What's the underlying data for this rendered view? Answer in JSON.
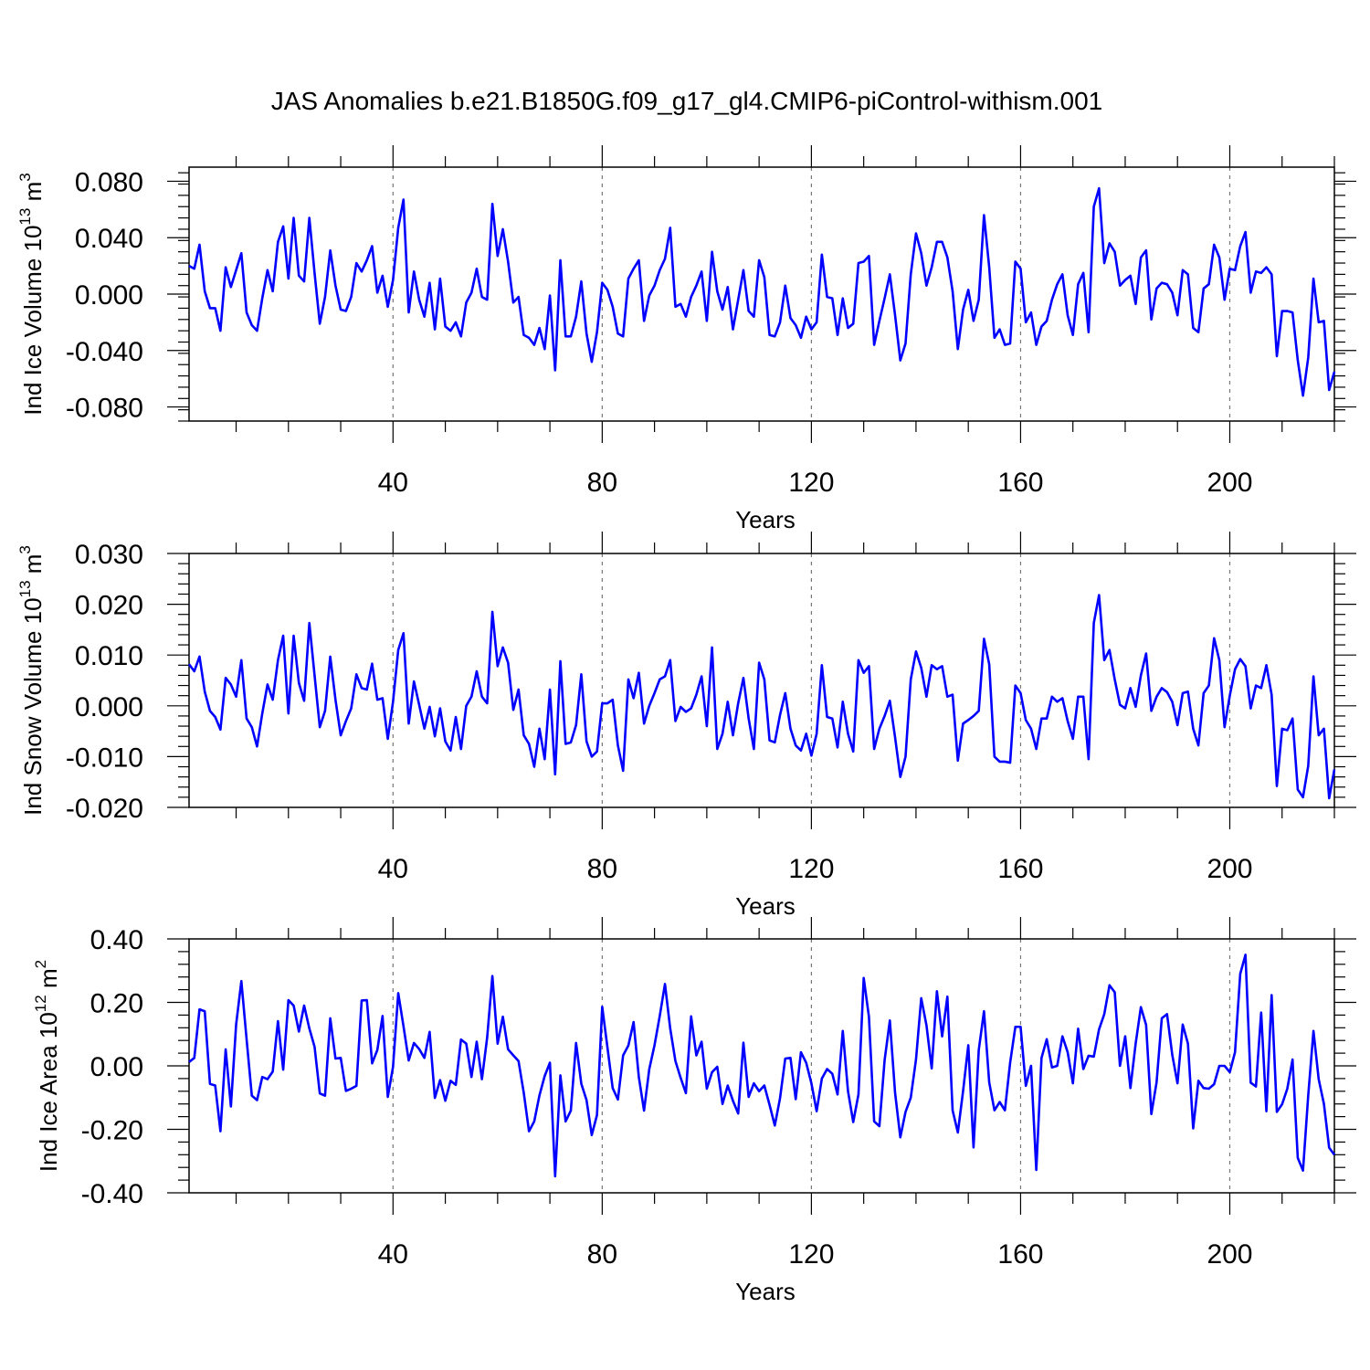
{
  "figure": {
    "title": "JAS Anomalies b.e21.B1850G.f09_g17_gl4.CMIP6-piControl-withism.001"
  },
  "chart_data": [
    {
      "type": "line",
      "xlabel": "Years",
      "ylabel_main": "Ind Ice Volume 10",
      "ylabel_exp": "13",
      "ylabel_unit": " m",
      "ylabel_unit_exp": "3",
      "xlim": [
        1,
        220
      ],
      "ylim": [
        -0.09,
        0.09
      ],
      "xticks": [
        40,
        80,
        120,
        160,
        200
      ],
      "xtick_labels": [
        "40",
        "80",
        "120",
        "160",
        "200"
      ],
      "yticks": [
        -0.08,
        -0.04,
        0.0,
        0.04,
        0.08
      ],
      "ytick_labels": [
        "-0.080",
        "-0.040",
        "0.000",
        "0.040",
        "0.080"
      ],
      "grid": "dashed vertical at x ticks",
      "color": "#0000ff",
      "series": [
        {
          "x_start": 1,
          "values": [
            0.02,
            0.018,
            0.035,
            0.002,
            -0.01,
            -0.01,
            -0.026,
            0.019,
            0.005,
            0.017,
            0.029,
            -0.013,
            -0.022,
            -0.026,
            -0.003,
            0.017,
            0.002,
            0.037,
            0.048,
            0.011,
            0.054,
            0.013,
            0.009,
            0.054,
            0.015,
            -0.021,
            -0.002,
            0.031,
            0.006,
            -0.011,
            -0.012,
            -0.002,
            0.022,
            0.016,
            0.024,
            0.034,
            0.001,
            0.013,
            -0.009,
            0.01,
            0.047,
            0.067,
            -0.013,
            0.016,
            -0.004,
            -0.016,
            0.008,
            -0.025,
            0.011,
            -0.023,
            -0.026,
            -0.02,
            -0.03,
            -0.006,
            0.001,
            0.018,
            -0.002,
            -0.004,
            0.064,
            0.027,
            0.046,
            0.023,
            -0.006,
            -0.002,
            -0.029,
            -0.031,
            -0.036,
            -0.024,
            -0.039,
            -0.001,
            -0.054,
            0.024,
            -0.03,
            -0.03,
            -0.016,
            0.009,
            -0.028,
            -0.048,
            -0.027,
            0.008,
            0.003,
            -0.009,
            -0.028,
            -0.03,
            0.011,
            0.018,
            0.024,
            -0.019,
            -0.001,
            0.006,
            0.017,
            0.025,
            0.047,
            -0.009,
            -0.007,
            -0.016,
            -0.002,
            0.006,
            0.016,
            -0.019,
            0.03,
            0.002,
            -0.011,
            0.005,
            -0.025,
            -0.004,
            0.017,
            -0.012,
            -0.016,
            0.024,
            0.012,
            -0.029,
            -0.03,
            -0.02,
            0.006,
            -0.017,
            -0.022,
            -0.031,
            -0.016,
            -0.025,
            -0.02,
            0.028,
            -0.002,
            -0.003,
            -0.029,
            -0.003,
            -0.024,
            -0.021,
            0.022,
            0.023,
            0.027,
            -0.036,
            -0.019,
            -0.003,
            0.014,
            -0.015,
            -0.047,
            -0.035,
            0.014,
            0.043,
            0.029,
            0.006,
            0.019,
            0.037,
            0.037,
            0.026,
            0.002,
            -0.039,
            -0.011,
            0.003,
            -0.019,
            -0.004,
            0.056,
            0.019,
            -0.031,
            -0.025,
            -0.036,
            -0.035,
            0.023,
            0.018,
            -0.02,
            -0.013,
            -0.036,
            -0.023,
            -0.019,
            -0.004,
            0.007,
            0.014,
            -0.015,
            -0.029,
            0.007,
            0.015,
            -0.027,
            0.062,
            0.075,
            0.022,
            0.036,
            0.03,
            0.006,
            0.01,
            0.013,
            -0.007,
            0.026,
            0.031,
            -0.018,
            0.004,
            0.008,
            0.007,
            0.001,
            -0.015,
            0.017,
            0.014,
            -0.024,
            -0.027,
            0.004,
            0.007,
            0.035,
            0.026,
            -0.004,
            0.018,
            0.017,
            0.034,
            0.044,
            0.001,
            0.016,
            0.015,
            0.019,
            0.014,
            -0.044,
            -0.012,
            -0.012,
            -0.013,
            -0.047,
            -0.072,
            -0.045,
            0.011,
            -0.02,
            -0.019,
            -0.068,
            -0.055
          ]
        }
      ]
    },
    {
      "type": "line",
      "xlabel": "Years",
      "ylabel_main": "Ind Snow Volume 10",
      "ylabel_exp": "13",
      "ylabel_unit": " m",
      "ylabel_unit_exp": "3",
      "xlim": [
        1,
        220
      ],
      "ylim": [
        -0.02,
        0.03
      ],
      "xticks": [
        40,
        80,
        120,
        160,
        200
      ],
      "xtick_labels": [
        "40",
        "80",
        "120",
        "160",
        "200"
      ],
      "yticks": [
        -0.02,
        -0.01,
        0.0,
        0.01,
        0.02,
        0.03
      ],
      "ytick_labels": [
        "-0.020",
        "-0.010",
        "0.000",
        "0.010",
        "0.020",
        "0.030"
      ],
      "grid": "dashed vertical at x ticks",
      "color": "#0000ff",
      "series": [
        {
          "x_start": 1,
          "values": [
            0.0082,
            0.0068,
            0.0097,
            0.0028,
            -0.001,
            -0.0022,
            -0.0047,
            0.0055,
            0.0042,
            0.0018,
            0.009,
            -0.0025,
            -0.0042,
            -0.008,
            -0.0015,
            0.0042,
            0.0012,
            0.009,
            0.0138,
            -0.0015,
            0.0138,
            0.0045,
            0.001,
            0.0163,
            0.006,
            -0.0042,
            -0.001,
            0.0097,
            0.0012,
            -0.0058,
            -0.003,
            -0.0005,
            0.0062,
            0.0035,
            0.0032,
            0.0083,
            0.0012,
            0.0015,
            -0.0065,
            0.0008,
            0.011,
            0.0143,
            -0.0035,
            0.0048,
            0.0002,
            -0.0045,
            -0.0002,
            -0.006,
            -0.0005,
            -0.007,
            -0.0088,
            -0.0022,
            -0.0085,
            0.0,
            0.0018,
            0.0068,
            0.0018,
            0.0005,
            0.0185,
            0.0078,
            0.0115,
            0.0085,
            -0.0008,
            0.0032,
            -0.0058,
            -0.0075,
            -0.012,
            -0.0045,
            -0.0105,
            0.0032,
            -0.0135,
            0.0088,
            -0.0075,
            -0.0072,
            -0.0038,
            0.0062,
            -0.007,
            -0.01,
            -0.009,
            0.0005,
            0.0005,
            0.0012,
            -0.0078,
            -0.0128,
            0.0052,
            0.0015,
            0.0065,
            -0.0035,
            0.0,
            0.0025,
            0.0052,
            0.0058,
            0.009,
            -0.003,
            -0.0002,
            -0.0012,
            -0.0005,
            0.0022,
            0.0058,
            -0.004,
            0.0115,
            -0.0085,
            -0.0055,
            0.0008,
            -0.0058,
            0.0005,
            0.0055,
            -0.0025,
            -0.0085,
            0.0085,
            0.0052,
            -0.0068,
            -0.0072,
            -0.0018,
            0.0025,
            -0.0045,
            -0.0078,
            -0.0088,
            -0.0055,
            -0.0098,
            -0.0055,
            0.008,
            -0.0022,
            -0.0025,
            -0.0082,
            0.0008,
            -0.0055,
            -0.009,
            0.009,
            0.0065,
            0.0078,
            -0.0085,
            -0.0045,
            -0.002,
            0.001,
            -0.0062,
            -0.014,
            -0.01,
            0.0052,
            0.0107,
            0.0075,
            0.0018,
            0.008,
            0.0072,
            0.0078,
            0.0018,
            0.0022,
            -0.0108,
            -0.0035,
            -0.0028,
            -0.002,
            -0.001,
            0.0132,
            0.0082,
            -0.01,
            -0.011,
            -0.011,
            -0.0112,
            0.004,
            0.0025,
            -0.0028,
            -0.0045,
            -0.0085,
            -0.0025,
            -0.0025,
            0.0018,
            0.0008,
            0.0015,
            -0.003,
            -0.0065,
            0.0018,
            0.0018,
            -0.0105,
            0.0163,
            0.0218,
            0.009,
            0.011,
            0.0052,
            0.0002,
            -0.0005,
            0.0035,
            -0.0002,
            0.006,
            0.0103,
            -0.001,
            0.0018,
            0.0035,
            0.0027,
            0.0008,
            -0.0038,
            0.0025,
            0.0028,
            -0.0045,
            -0.0078,
            0.0025,
            0.004,
            0.0133,
            0.009,
            -0.0042,
            0.002,
            0.0072,
            0.0092,
            0.0078,
            -0.0005,
            0.004,
            0.0035,
            0.008,
            0.0022,
            -0.0158,
            -0.0045,
            -0.0048,
            -0.0025,
            -0.0165,
            -0.018,
            -0.0118,
            0.0058,
            -0.0058,
            -0.0045,
            -0.0182,
            -0.0125
          ]
        }
      ]
    },
    {
      "type": "line",
      "xlabel": "Years",
      "ylabel_main": "Ind Ice Area 10",
      "ylabel_exp": "12",
      "ylabel_unit": " m",
      "ylabel_unit_exp": "2",
      "xlim": [
        1,
        220
      ],
      "ylim": [
        -0.4,
        0.4
      ],
      "xticks": [
        40,
        80,
        120,
        160,
        200
      ],
      "xtick_labels": [
        "40",
        "80",
        "120",
        "160",
        "200"
      ],
      "yticks": [
        -0.4,
        -0.2,
        0.0,
        0.2,
        0.4
      ],
      "ytick_labels": [
        "-0.40",
        "-0.20",
        "0.00",
        "0.20",
        "0.40"
      ],
      "grid": "dashed vertical at x ticks",
      "color": "#0000ff",
      "series": [
        {
          "x_start": 1,
          "values": [
            0.012,
            0.025,
            0.178,
            0.172,
            -0.057,
            -0.062,
            -0.206,
            0.052,
            -0.128,
            0.13,
            0.267,
            0.084,
            -0.094,
            -0.108,
            -0.035,
            -0.042,
            -0.018,
            0.141,
            -0.012,
            0.207,
            0.19,
            0.108,
            0.19,
            0.118,
            0.06,
            -0.087,
            -0.094,
            0.15,
            0.023,
            0.025,
            -0.079,
            -0.072,
            -0.063,
            0.206,
            0.207,
            0.008,
            0.05,
            0.157,
            -0.098,
            -0.003,
            0.229,
            0.125,
            0.017,
            0.072,
            0.053,
            0.025,
            0.107,
            -0.101,
            -0.045,
            -0.11,
            -0.047,
            -0.06,
            0.083,
            0.07,
            -0.035,
            0.076,
            -0.042,
            0.089,
            0.283,
            0.07,
            0.155,
            0.052,
            0.033,
            0.015,
            -0.085,
            -0.206,
            -0.175,
            -0.093,
            -0.032,
            0.01,
            -0.348,
            -0.03,
            -0.175,
            -0.141,
            0.072,
            -0.056,
            -0.108,
            -0.218,
            -0.155,
            0.186,
            0.058,
            -0.07,
            -0.106,
            0.033,
            0.064,
            0.138,
            -0.035,
            -0.141,
            -0.01,
            0.065,
            0.157,
            0.258,
            0.118,
            0.015,
            -0.038,
            -0.086,
            0.156,
            0.033,
            0.076,
            -0.072,
            -0.02,
            -0.003,
            -0.12,
            -0.062,
            -0.11,
            -0.15,
            0.073,
            -0.098,
            -0.055,
            -0.08,
            -0.062,
            -0.123,
            -0.188,
            -0.102,
            0.023,
            0.025,
            -0.105,
            0.043,
            0.01,
            -0.055,
            -0.143,
            -0.04,
            -0.01,
            -0.025,
            -0.09,
            0.11,
            -0.08,
            -0.177,
            -0.09,
            0.277,
            0.155,
            -0.175,
            -0.19,
            0.018,
            0.143,
            -0.085,
            -0.225,
            -0.145,
            -0.1,
            0.02,
            0.213,
            0.128,
            -0.008,
            0.235,
            0.093,
            0.218,
            -0.14,
            -0.21,
            -0.08,
            0.065,
            -0.257,
            0.05,
            0.172,
            -0.052,
            -0.14,
            -0.114,
            -0.14,
            0.01,
            0.123,
            0.123,
            -0.063,
            0.0,
            -0.328,
            0.025,
            0.084,
            -0.005,
            0.0,
            0.093,
            0.043,
            -0.055,
            0.117,
            -0.01,
            0.032,
            0.029,
            0.115,
            0.163,
            0.254,
            0.232,
            0.0,
            0.093,
            -0.07,
            0.07,
            0.185,
            0.129,
            -0.152,
            -0.052,
            0.15,
            0.163,
            0.035,
            -0.055,
            0.13,
            0.07,
            -0.197,
            -0.047,
            -0.07,
            -0.072,
            -0.058,
            0.0,
            0.0,
            -0.02,
            0.043,
            0.29,
            0.35,
            -0.053,
            -0.065,
            0.168,
            -0.143,
            0.223,
            -0.145,
            -0.121,
            -0.072,
            0.02,
            -0.29,
            -0.33,
            -0.093,
            0.11,
            -0.042,
            -0.12,
            -0.258,
            -0.28
          ]
        }
      ]
    }
  ]
}
